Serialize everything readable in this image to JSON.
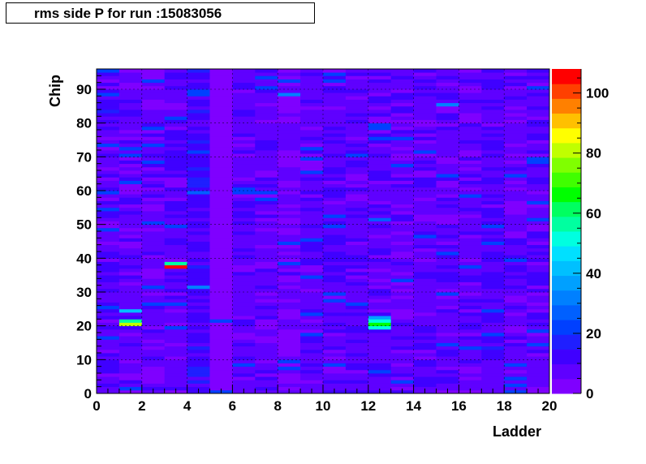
{
  "chart_data": {
    "type": "heatmap",
    "title": "rms side P for run :15083056",
    "xlabel": "Ladder",
    "ylabel": "Chip",
    "xlim": [
      0,
      20
    ],
    "ylim": [
      0,
      96
    ],
    "zlim": [
      0,
      108
    ],
    "x_ticks": [
      0,
      2,
      4,
      6,
      8,
      10,
      12,
      14,
      16,
      18,
      20
    ],
    "y_ticks": [
      0,
      10,
      20,
      30,
      40,
      50,
      60,
      70,
      80,
      90
    ],
    "z_ticks": [
      0,
      20,
      40,
      60,
      80,
      100
    ],
    "grid": true,
    "palette": [
      "#7f00ff",
      "#5f00ff",
      "#3f00ff",
      "#1f1fff",
      "#0040ff",
      "#0060ff",
      "#0080ff",
      "#00a0ff",
      "#00c0ff",
      "#00e0ff",
      "#00ffe0",
      "#00ffa0",
      "#00ff60",
      "#00ff00",
      "#40ff00",
      "#80ff00",
      "#c0ff00",
      "#ffff00",
      "#ffc000",
      "#ff8000",
      "#ff4000",
      "#ff0000"
    ],
    "nx": 20,
    "ny": 96,
    "background_value": 5,
    "columns": [
      {
        "ladder": 1,
        "base": 8
      },
      {
        "ladder": 2,
        "base": 7
      },
      {
        "ladder": 3,
        "base": 7
      },
      {
        "ladder": 4,
        "base": 8
      },
      {
        "ladder": 5,
        "base": 12
      },
      {
        "ladder": 6,
        "base": 1
      },
      {
        "ladder": 7,
        "base": 8
      },
      {
        "ladder": 8,
        "base": 7
      },
      {
        "ladder": 9,
        "base": 6
      },
      {
        "ladder": 10,
        "base": 8
      },
      {
        "ladder": 11,
        "base": 8
      },
      {
        "ladder": 12,
        "base": 8
      },
      {
        "ladder": 13,
        "base": 8
      },
      {
        "ladder": 14,
        "base": 7
      },
      {
        "ladder": 15,
        "base": 8
      },
      {
        "ladder": 16,
        "base": 8
      },
      {
        "ladder": 17,
        "base": 7
      },
      {
        "ladder": 18,
        "base": 9
      },
      {
        "ladder": 19,
        "base": 7
      },
      {
        "ladder": 20,
        "base": 8
      }
    ],
    "hot_cells": [
      {
        "ladder": 2,
        "chip": 20,
        "value": 80
      },
      {
        "ladder": 2,
        "chip": 21,
        "value": 58
      },
      {
        "ladder": 2,
        "chip": 24,
        "value": 40
      },
      {
        "ladder": 4,
        "chip": 37,
        "value": 105
      },
      {
        "ladder": 4,
        "chip": 38,
        "value": 55
      },
      {
        "ladder": 5,
        "chip": 31,
        "value": 30
      },
      {
        "ladder": 5,
        "chip": 59,
        "value": 28
      },
      {
        "ladder": 5,
        "chip": 89,
        "value": 24
      },
      {
        "ladder": 8,
        "chip": 59,
        "value": 22
      },
      {
        "ladder": 8,
        "chip": 57,
        "value": 24
      },
      {
        "ladder": 9,
        "chip": 88,
        "value": 30
      },
      {
        "ladder": 13,
        "chip": 19,
        "value": 50
      },
      {
        "ladder": 13,
        "chip": 20,
        "value": 65
      },
      {
        "ladder": 13,
        "chip": 21,
        "value": 52
      },
      {
        "ladder": 13,
        "chip": 22,
        "value": 38
      },
      {
        "ladder": 13,
        "chip": 51,
        "value": 26
      },
      {
        "ladder": 16,
        "chip": 85,
        "value": 32
      },
      {
        "ladder": 18,
        "chip": 17,
        "value": 22
      },
      {
        "ladder": 18,
        "chip": 13,
        "value": 18
      },
      {
        "ladder": 1,
        "chip": 83,
        "value": 16
      },
      {
        "ladder": 7,
        "chip": 60,
        "value": 20
      },
      {
        "ladder": 7,
        "chip": 59,
        "value": 20
      },
      {
        "ladder": 9,
        "chip": 9,
        "value": 20
      }
    ]
  },
  "colors": {
    "frame": "#000000",
    "background": "#ffffff"
  }
}
